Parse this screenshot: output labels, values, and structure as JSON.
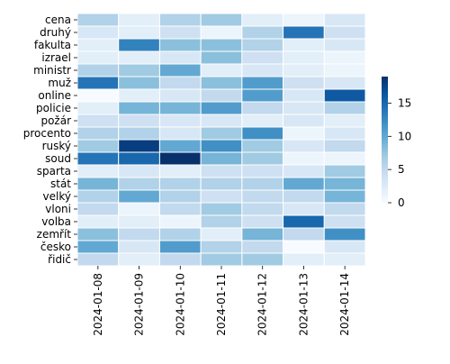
{
  "chart_data": {
    "type": "heatmap",
    "title": "",
    "xlabel": "",
    "ylabel": "",
    "rows": [
      "cena",
      "druhý",
      "fakulta",
      "izrael",
      "ministr",
      "muž",
      "online",
      "policie",
      "požár",
      "procento",
      "ruský",
      "soud",
      "sparta",
      "stát",
      "velký",
      "vloni",
      "volba",
      "zemřít",
      "česko",
      "řidič"
    ],
    "columns": [
      "2024-01-08",
      "2024-01-09",
      "2024-01-10",
      "2024-01-11",
      "2024-01-12",
      "2024-01-13",
      "2024-01-14"
    ],
    "values": [
      [
        6,
        2,
        6,
        7,
        2,
        1,
        3
      ],
      [
        3,
        2,
        4,
        1,
        6,
        14,
        4
      ],
      [
        2,
        13,
        8,
        8,
        6,
        2,
        3
      ],
      [
        2,
        2,
        3,
        8,
        4,
        2,
        1
      ],
      [
        6,
        7,
        10,
        2,
        3,
        2,
        1
      ],
      [
        14,
        8,
        5,
        8,
        11,
        4,
        3
      ],
      [
        0,
        2,
        3,
        5,
        11,
        3,
        16
      ],
      [
        2,
        9,
        9,
        11,
        5,
        3,
        6
      ],
      [
        4,
        4,
        3,
        3,
        2,
        3,
        2
      ],
      [
        6,
        6,
        3,
        7,
        12,
        1,
        3
      ],
      [
        7,
        18,
        10,
        12,
        7,
        3,
        5
      ],
      [
        14,
        15,
        19,
        9,
        7,
        1,
        1
      ],
      [
        2,
        3,
        2,
        4,
        4,
        3,
        7
      ],
      [
        9,
        6,
        6,
        6,
        6,
        10,
        9
      ],
      [
        6,
        10,
        6,
        4,
        5,
        5,
        9
      ],
      [
        5,
        1,
        5,
        7,
        5,
        3,
        5
      ],
      [
        2,
        2,
        1,
        6,
        4,
        15,
        4
      ],
      [
        8,
        5,
        6,
        2,
        9,
        5,
        12
      ],
      [
        10,
        3,
        11,
        6,
        5,
        0,
        3
      ],
      [
        5,
        2,
        5,
        7,
        7,
        2,
        2
      ]
    ],
    "colorbar": {
      "min": 0,
      "max": 19,
      "ticks": [
        0,
        5,
        10,
        15
      ]
    },
    "colormap": [
      "#f7fbff",
      "#deebf7",
      "#c6dbef",
      "#9ecae1",
      "#6baed6",
      "#4292c6",
      "#2171b5",
      "#08519c",
      "#08306b"
    ]
  }
}
